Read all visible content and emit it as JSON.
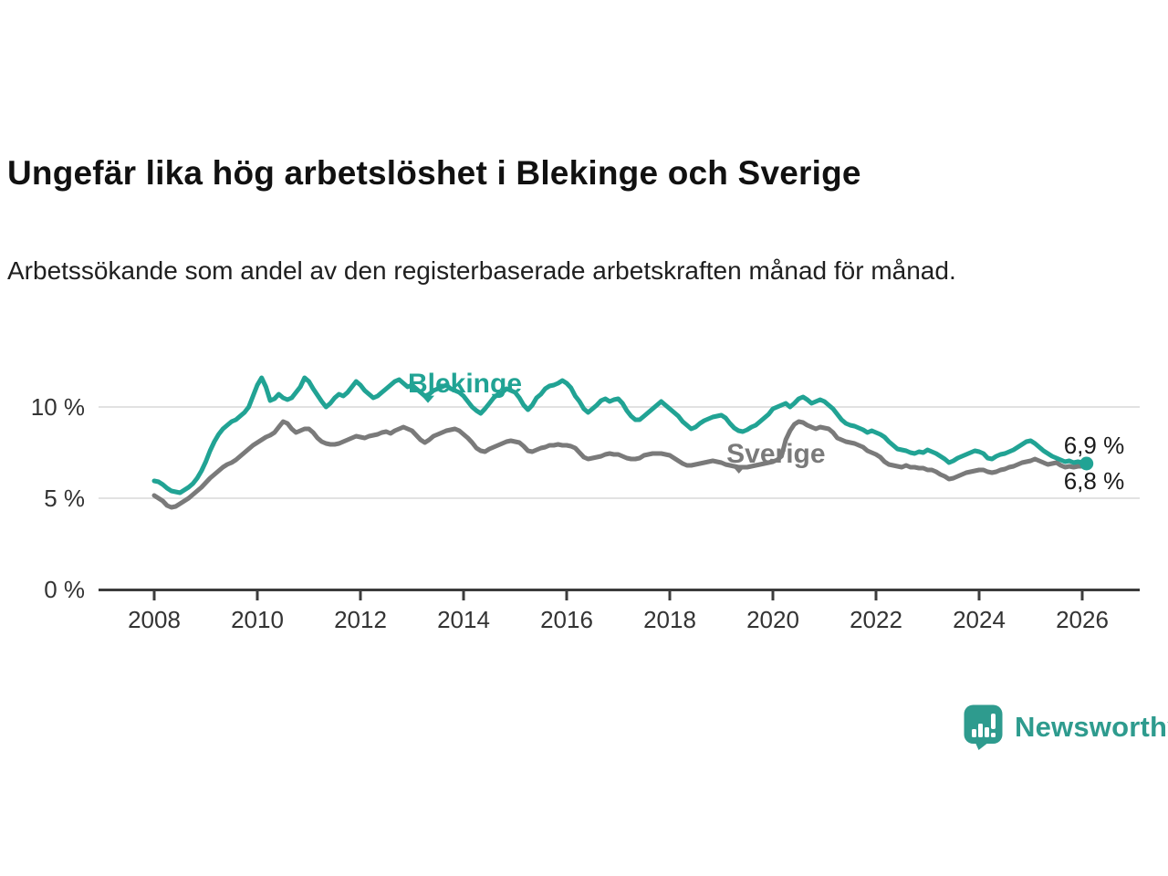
{
  "header": {
    "title": "Ungefär lika hög arbetslöshet i Blekinge och Sverige",
    "subtitle": "Arbetssökande som andel av den registerbaserade arbetskraften månad för månad."
  },
  "footer": {
    "brand": "Newsworthy",
    "logo_icon": "newsworthy-speech-bubble-bar-chart"
  },
  "colors": {
    "background": "#FFFFFF",
    "title_text": "#111111",
    "subtitle_text": "#1F1F1F",
    "blekinge_line": "#21A394",
    "sverige_line": "#7A7A7A",
    "grid_line": "#E2E2E2",
    "axis_line": "#3C3C3C",
    "axis_tick_label": "#333333",
    "end_annotation": "#1A1A1A",
    "logo_teal": "#2E9B8E"
  },
  "chart_data": {
    "type": "line",
    "title": "Ungefär lika hög arbetslöshet i Blekinge och Sverige",
    "subtitle": "Arbetssökande som andel av den registerbaserade arbetskraften månad för månad.",
    "unit": "%",
    "x_start_year": 2008,
    "x_start_month": 1,
    "x_interval": "monthly",
    "x_ticks": [
      "2008",
      "2010",
      "2012",
      "2014",
      "2016",
      "2018",
      "2020",
      "2022",
      "2024",
      "2026"
    ],
    "y_ticks": [
      {
        "value": 0,
        "label": "0 %"
      },
      {
        "value": 5,
        "label": "5 %"
      },
      {
        "value": 10,
        "label": "10 %"
      }
    ],
    "ylim": [
      0,
      12.5
    ],
    "xlim": [
      2006.9,
      2027.1
    ],
    "grid": "horizontal",
    "legend_position": "inline-labels",
    "series": [
      {
        "name": "Blekinge",
        "color": "#21A394",
        "end_label": "6,9 %",
        "end_dot": true,
        "label": {
          "x": 2012.92,
          "y": 10.8,
          "pointer_x": 2013.31,
          "pointer_y": 10.42
        },
        "values": [
          5.95,
          5.9,
          5.75,
          5.55,
          5.4,
          5.35,
          5.3,
          5.45,
          5.6,
          5.8,
          6.1,
          6.5,
          7.0,
          7.6,
          8.1,
          8.5,
          8.8,
          9.0,
          9.2,
          9.3,
          9.5,
          9.7,
          10.0,
          10.6,
          11.2,
          11.6,
          11.1,
          10.35,
          10.45,
          10.7,
          10.5,
          10.4,
          10.5,
          10.8,
          11.1,
          11.6,
          11.4,
          11.0,
          10.65,
          10.3,
          10.0,
          10.2,
          10.5,
          10.7,
          10.6,
          10.8,
          11.1,
          11.4,
          11.2,
          10.9,
          10.7,
          10.5,
          10.6,
          10.8,
          11.0,
          11.2,
          11.4,
          11.5,
          11.3,
          11.1,
          11.2,
          11.0,
          10.8,
          10.6,
          10.7,
          10.9,
          11.0,
          11.1,
          11.2,
          11.0,
          10.9,
          10.8,
          10.6,
          10.3,
          10.0,
          9.8,
          9.65,
          9.9,
          10.2,
          10.5,
          10.7,
          10.8,
          11.0,
          10.9,
          10.8,
          10.5,
          10.1,
          9.85,
          10.1,
          10.5,
          10.7,
          11.0,
          11.15,
          11.2,
          11.3,
          11.45,
          11.3,
          11.05,
          10.6,
          10.3,
          9.9,
          9.7,
          9.9,
          10.1,
          10.35,
          10.45,
          10.3,
          10.4,
          10.45,
          10.2,
          9.8,
          9.5,
          9.3,
          9.3,
          9.5,
          9.7,
          9.9,
          10.1,
          10.3,
          10.1,
          9.9,
          9.7,
          9.5,
          9.2,
          9.0,
          8.8,
          8.9,
          9.1,
          9.25,
          9.35,
          9.45,
          9.5,
          9.55,
          9.4,
          9.1,
          8.85,
          8.7,
          8.65,
          8.75,
          8.9,
          9.0,
          9.2,
          9.4,
          9.6,
          9.9,
          10.0,
          10.1,
          10.2,
          10.0,
          10.2,
          10.45,
          10.55,
          10.4,
          10.2,
          10.3,
          10.4,
          10.3,
          10.1,
          9.9,
          9.6,
          9.3,
          9.1,
          9.0,
          8.95,
          8.85,
          8.75,
          8.6,
          8.7,
          8.6,
          8.5,
          8.35,
          8.1,
          7.9,
          7.7,
          7.65,
          7.6,
          7.5,
          7.45,
          7.55,
          7.5,
          7.65,
          7.55,
          7.45,
          7.3,
          7.15,
          6.95,
          7.05,
          7.2,
          7.3,
          7.4,
          7.5,
          7.6,
          7.55,
          7.45,
          7.2,
          7.15,
          7.3,
          7.4,
          7.45,
          7.55,
          7.65,
          7.8,
          7.95,
          8.1,
          8.15,
          8.0,
          7.8,
          7.6,
          7.45,
          7.3,
          7.2,
          7.1,
          7.0,
          7.05,
          6.95,
          7.0,
          6.95,
          6.9
        ]
      },
      {
        "name": "Sverige",
        "color": "#7A7A7A",
        "end_label": "6,8 %",
        "end_dot": false,
        "label": {
          "x": 2019.1,
          "y": 6.95,
          "pointer_x": 2019.34,
          "pointer_y": 6.55
        },
        "values": [
          5.15,
          5.0,
          4.85,
          4.6,
          4.5,
          4.55,
          4.7,
          4.85,
          5.0,
          5.2,
          5.4,
          5.6,
          5.85,
          6.1,
          6.3,
          6.5,
          6.7,
          6.85,
          6.95,
          7.1,
          7.3,
          7.5,
          7.7,
          7.9,
          8.05,
          8.2,
          8.35,
          8.45,
          8.6,
          8.9,
          9.2,
          9.1,
          8.8,
          8.6,
          8.7,
          8.8,
          8.8,
          8.6,
          8.3,
          8.1,
          8.0,
          7.95,
          7.95,
          8.0,
          8.1,
          8.2,
          8.3,
          8.4,
          8.35,
          8.3,
          8.4,
          8.45,
          8.5,
          8.6,
          8.65,
          8.55,
          8.7,
          8.8,
          8.9,
          8.8,
          8.7,
          8.45,
          8.2,
          8.05,
          8.2,
          8.4,
          8.5,
          8.6,
          8.7,
          8.75,
          8.8,
          8.7,
          8.5,
          8.3,
          8.05,
          7.75,
          7.6,
          7.55,
          7.7,
          7.8,
          7.9,
          8.0,
          8.1,
          8.15,
          8.1,
          8.05,
          7.85,
          7.6,
          7.55,
          7.65,
          7.75,
          7.8,
          7.9,
          7.9,
          7.95,
          7.9,
          7.9,
          7.85,
          7.75,
          7.5,
          7.25,
          7.15,
          7.2,
          7.25,
          7.3,
          7.4,
          7.45,
          7.4,
          7.4,
          7.3,
          7.2,
          7.15,
          7.15,
          7.2,
          7.35,
          7.4,
          7.45,
          7.45,
          7.45,
          7.4,
          7.35,
          7.2,
          7.05,
          6.9,
          6.8,
          6.8,
          6.85,
          6.9,
          6.95,
          7.0,
          7.05,
          7.0,
          6.95,
          6.85,
          6.8,
          6.75,
          6.7,
          6.7,
          6.7,
          6.75,
          6.8,
          6.85,
          6.9,
          6.95,
          7.0,
          7.1,
          7.3,
          8.2,
          8.7,
          9.05,
          9.2,
          9.15,
          9.0,
          8.9,
          8.8,
          8.9,
          8.85,
          8.8,
          8.6,
          8.3,
          8.2,
          8.1,
          8.05,
          8.0,
          7.9,
          7.8,
          7.6,
          7.5,
          7.4,
          7.25,
          7.0,
          6.85,
          6.8,
          6.75,
          6.7,
          6.8,
          6.7,
          6.7,
          6.65,
          6.65,
          6.55,
          6.55,
          6.45,
          6.3,
          6.2,
          6.05,
          6.1,
          6.2,
          6.3,
          6.4,
          6.45,
          6.5,
          6.55,
          6.55,
          6.45,
          6.4,
          6.45,
          6.55,
          6.6,
          6.7,
          6.75,
          6.85,
          6.95,
          7.0,
          7.05,
          7.15,
          7.05,
          6.95,
          6.85,
          6.9,
          6.95,
          6.8,
          6.7,
          6.75,
          6.7,
          6.75,
          6.75,
          6.8
        ]
      }
    ]
  }
}
